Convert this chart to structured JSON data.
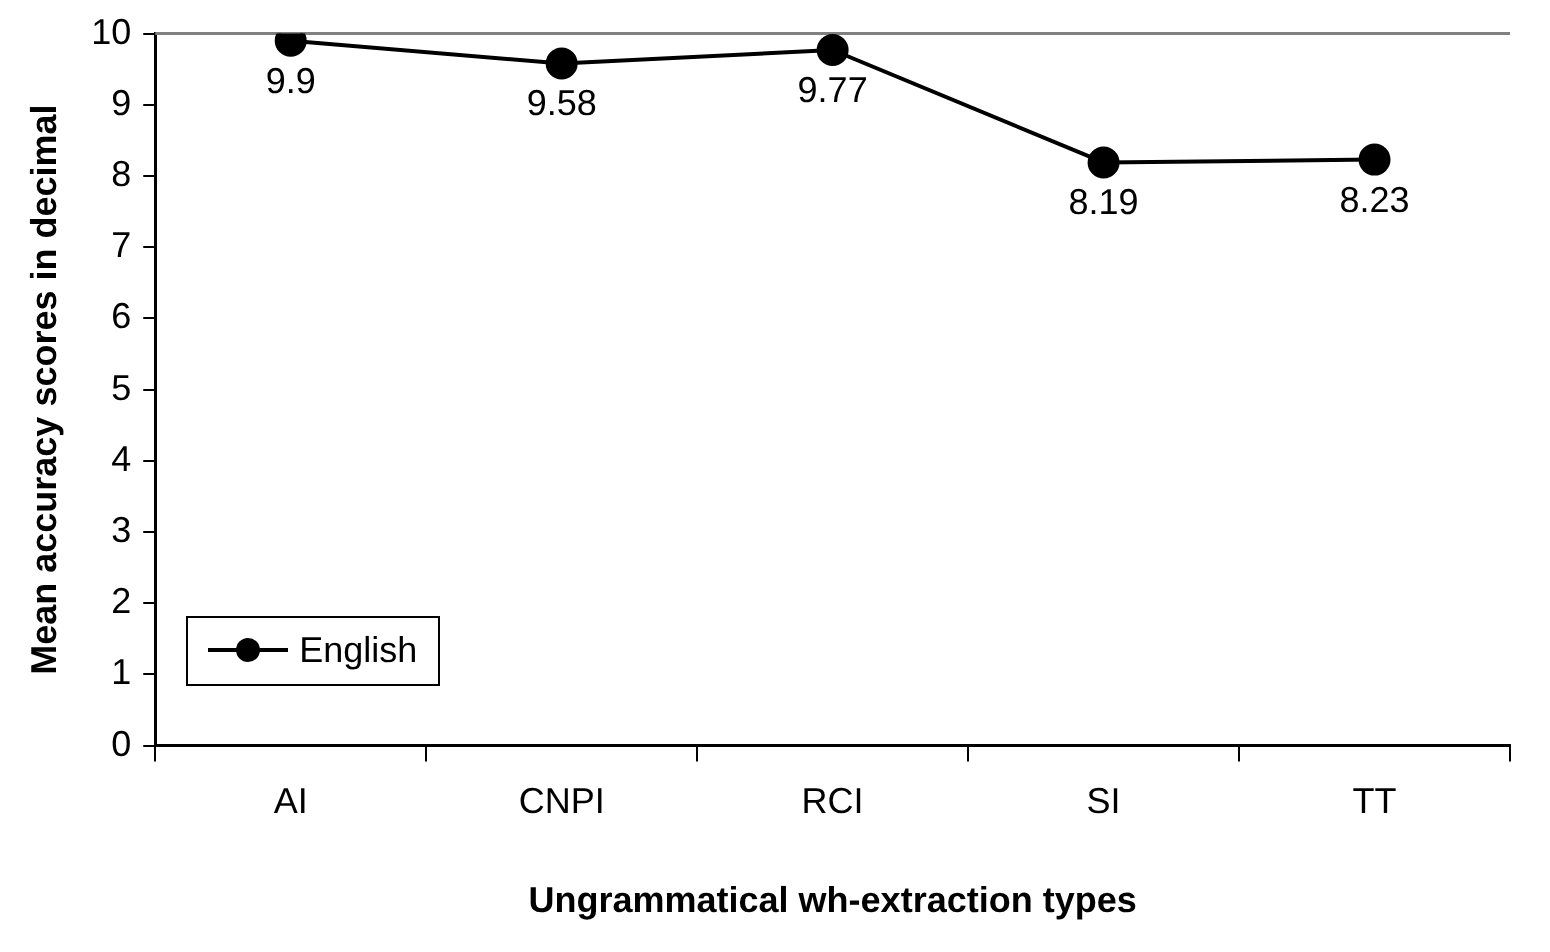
{
  "chart_data": {
    "type": "line",
    "xlabel": "Ungrammatical wh-extraction types",
    "ylabel": "Mean accuracy scores in decimal",
    "categories": [
      "AI",
      "CNPI",
      "RCI",
      "SI",
      "TT"
    ],
    "series": [
      {
        "name": "English",
        "color": "#000000",
        "values": [
          9.9,
          9.58,
          9.77,
          8.19,
          8.23
        ]
      }
    ],
    "ylim": [
      0,
      10
    ],
    "yticks": [
      0,
      1,
      2,
      3,
      4,
      5,
      6,
      7,
      8,
      9,
      10
    ],
    "ref_lines": [
      {
        "axis": "y",
        "value": 10,
        "color": "#808080"
      }
    ],
    "grid": false,
    "legend": "bottom left",
    "marker": "circle",
    "line_style": "solid",
    "data_labels": true
  }
}
